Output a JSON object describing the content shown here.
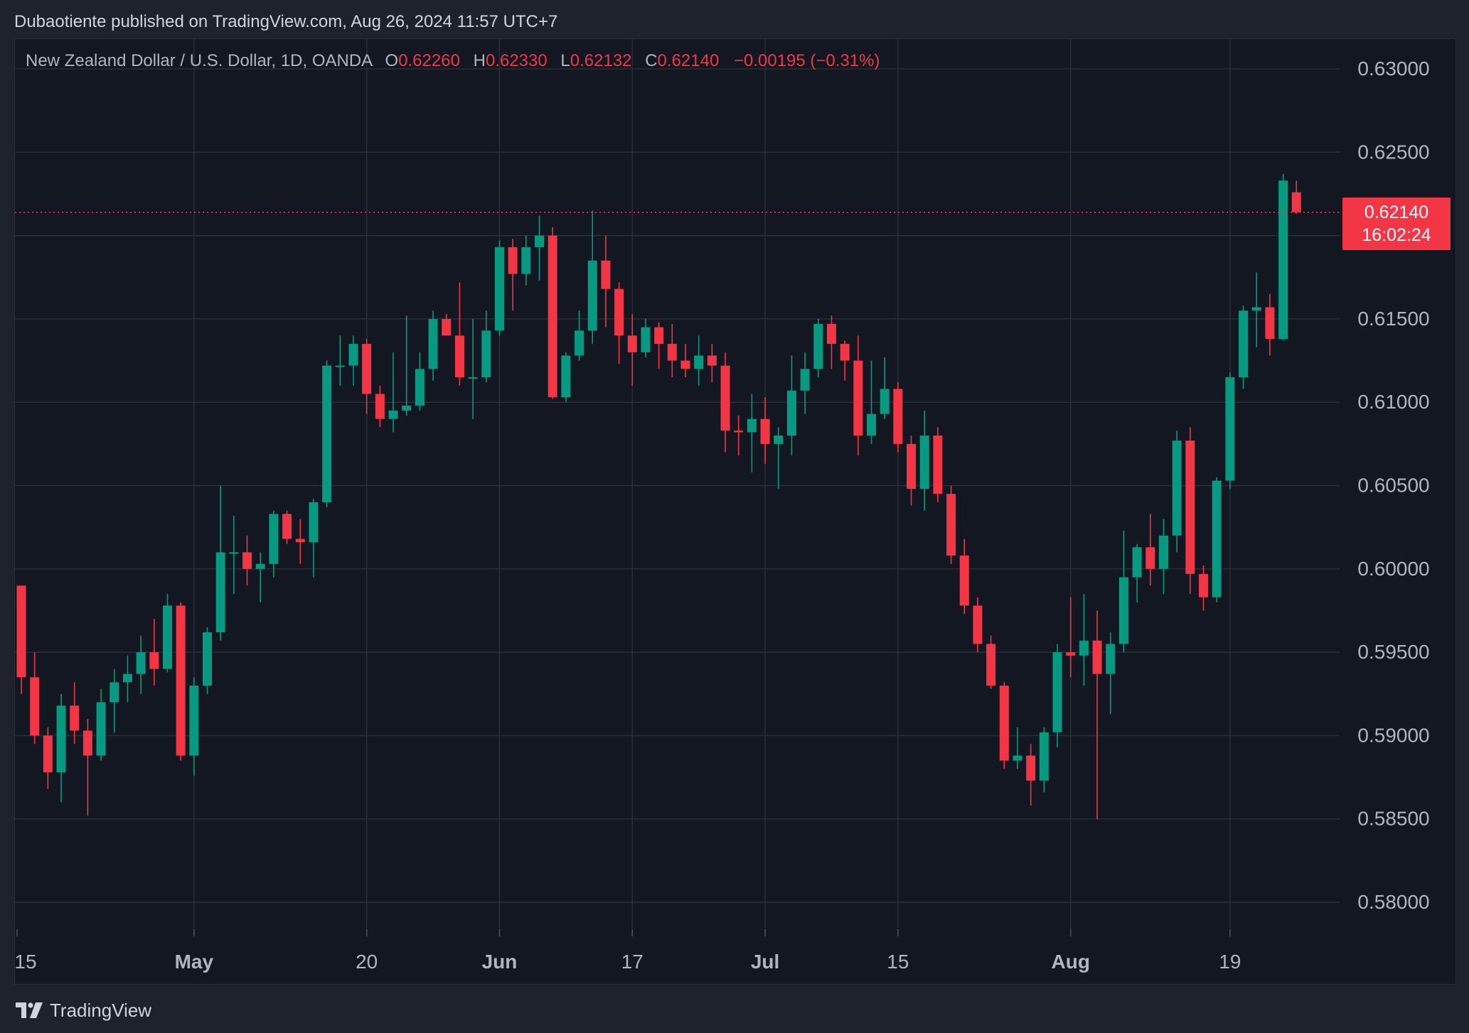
{
  "header": {
    "publisher_text": "Dubaotiente published on TradingView.com, Aug 26, 2024 11:57 UTC+7"
  },
  "legend": {
    "symbol": "New Zealand Dollar / U.S. Dollar, 1D, OANDA",
    "open_label": "O",
    "open": "0.62260",
    "high_label": "H",
    "high": "0.62330",
    "low_label": "L",
    "low": "0.62132",
    "close_label": "C",
    "close": "0.62140",
    "change": "−0.00195 (−0.31%)"
  },
  "price_tag": {
    "price": "0.62140",
    "countdown": "16:02:24"
  },
  "footer": {
    "brand": "TradingView"
  },
  "colors": {
    "up": "#089981",
    "down": "#f23645",
    "grid": "#2a2e39",
    "text": "#b2b5be",
    "background": "#131722"
  },
  "chart_data": {
    "type": "candlestick",
    "title": "New Zealand Dollar / U.S. Dollar, 1D, OANDA",
    "current_price": 0.6214,
    "y_ticks": [
      0.58,
      0.585,
      0.59,
      0.595,
      0.6,
      0.605,
      0.61,
      0.615,
      0.62,
      0.625,
      0.63
    ],
    "y_tick_labels": [
      "0.58000",
      "0.58500",
      "0.59000",
      "0.59500",
      "0.60000",
      "0.60500",
      "0.61000",
      "0.61500",
      "0.62000",
      "0.62500",
      "0.63000"
    ],
    "x_ticks": [
      {
        "label": "15",
        "index": 0,
        "bold": false
      },
      {
        "label": "May",
        "index": 13,
        "bold": true
      },
      {
        "label": "20",
        "index": 26,
        "bold": false
      },
      {
        "label": "Jun",
        "index": 36,
        "bold": true
      },
      {
        "label": "17",
        "index": 46,
        "bold": false
      },
      {
        "label": "Jul",
        "index": 56,
        "bold": true
      },
      {
        "label": "15",
        "index": 66,
        "bold": false
      },
      {
        "label": "Aug",
        "index": 79,
        "bold": true
      },
      {
        "label": "19",
        "index": 91,
        "bold": false
      }
    ],
    "candles": [
      {
        "o": 0.599,
        "h": 0.599,
        "l": 0.5925,
        "c": 0.5935
      },
      {
        "o": 0.5935,
        "h": 0.595,
        "l": 0.5895,
        "c": 0.59
      },
      {
        "o": 0.59,
        "h": 0.5905,
        "l": 0.5868,
        "c": 0.5878
      },
      {
        "o": 0.5878,
        "h": 0.5925,
        "l": 0.586,
        "c": 0.5918
      },
      {
        "o": 0.5918,
        "h": 0.5932,
        "l": 0.5895,
        "c": 0.5903
      },
      {
        "o": 0.5903,
        "h": 0.591,
        "l": 0.5852,
        "c": 0.5888
      },
      {
        "o": 0.5888,
        "h": 0.5928,
        "l": 0.5885,
        "c": 0.592
      },
      {
        "o": 0.592,
        "h": 0.594,
        "l": 0.5902,
        "c": 0.5932
      },
      {
        "o": 0.5932,
        "h": 0.5948,
        "l": 0.592,
        "c": 0.5937
      },
      {
        "o": 0.5937,
        "h": 0.596,
        "l": 0.5925,
        "c": 0.595
      },
      {
        "o": 0.595,
        "h": 0.597,
        "l": 0.593,
        "c": 0.594
      },
      {
        "o": 0.594,
        "h": 0.5985,
        "l": 0.5938,
        "c": 0.5978
      },
      {
        "o": 0.5978,
        "h": 0.598,
        "l": 0.5885,
        "c": 0.5888
      },
      {
        "o": 0.5888,
        "h": 0.5935,
        "l": 0.5876,
        "c": 0.593
      },
      {
        "o": 0.593,
        "h": 0.5965,
        "l": 0.5925,
        "c": 0.5962
      },
      {
        "o": 0.5962,
        "h": 0.605,
        "l": 0.5957,
        "c": 0.601
      },
      {
        "o": 0.601,
        "h": 0.6032,
        "l": 0.5985,
        "c": 0.601
      },
      {
        "o": 0.601,
        "h": 0.602,
        "l": 0.599,
        "c": 0.6
      },
      {
        "o": 0.6,
        "h": 0.601,
        "l": 0.598,
        "c": 0.6003
      },
      {
        "o": 0.6003,
        "h": 0.6035,
        "l": 0.5995,
        "c": 0.6033
      },
      {
        "o": 0.6033,
        "h": 0.6035,
        "l": 0.6015,
        "c": 0.6018
      },
      {
        "o": 0.6018,
        "h": 0.603,
        "l": 0.6003,
        "c": 0.6016
      },
      {
        "o": 0.6016,
        "h": 0.6042,
        "l": 0.5995,
        "c": 0.604
      },
      {
        "o": 0.604,
        "h": 0.6125,
        "l": 0.6037,
        "c": 0.6122
      },
      {
        "o": 0.6122,
        "h": 0.614,
        "l": 0.611,
        "c": 0.6122
      },
      {
        "o": 0.6122,
        "h": 0.614,
        "l": 0.611,
        "c": 0.6135
      },
      {
        "o": 0.6135,
        "h": 0.6138,
        "l": 0.6093,
        "c": 0.6105
      },
      {
        "o": 0.6105,
        "h": 0.611,
        "l": 0.6085,
        "c": 0.609
      },
      {
        "o": 0.609,
        "h": 0.613,
        "l": 0.6082,
        "c": 0.6095
      },
      {
        "o": 0.6095,
        "h": 0.6152,
        "l": 0.6092,
        "c": 0.6098
      },
      {
        "o": 0.6098,
        "h": 0.613,
        "l": 0.6095,
        "c": 0.612
      },
      {
        "o": 0.612,
        "h": 0.6155,
        "l": 0.6113,
        "c": 0.615
      },
      {
        "o": 0.615,
        "h": 0.6153,
        "l": 0.614,
        "c": 0.614
      },
      {
        "o": 0.614,
        "h": 0.6172,
        "l": 0.611,
        "c": 0.6115
      },
      {
        "o": 0.6115,
        "h": 0.615,
        "l": 0.609,
        "c": 0.6115
      },
      {
        "o": 0.6115,
        "h": 0.6155,
        "l": 0.6112,
        "c": 0.6143
      },
      {
        "o": 0.6143,
        "h": 0.6197,
        "l": 0.614,
        "c": 0.6193
      },
      {
        "o": 0.6193,
        "h": 0.6198,
        "l": 0.6155,
        "c": 0.6177
      },
      {
        "o": 0.6177,
        "h": 0.62,
        "l": 0.617,
        "c": 0.6193
      },
      {
        "o": 0.6193,
        "h": 0.6212,
        "l": 0.6173,
        "c": 0.62
      },
      {
        "o": 0.62,
        "h": 0.6205,
        "l": 0.6102,
        "c": 0.6103
      },
      {
        "o": 0.6103,
        "h": 0.613,
        "l": 0.61,
        "c": 0.6128
      },
      {
        "o": 0.6128,
        "h": 0.6155,
        "l": 0.6125,
        "c": 0.6143
      },
      {
        "o": 0.6143,
        "h": 0.6215,
        "l": 0.6135,
        "c": 0.6185
      },
      {
        "o": 0.6185,
        "h": 0.62,
        "l": 0.6145,
        "c": 0.6168
      },
      {
        "o": 0.6168,
        "h": 0.6172,
        "l": 0.6123,
        "c": 0.614
      },
      {
        "o": 0.614,
        "h": 0.6153,
        "l": 0.611,
        "c": 0.613
      },
      {
        "o": 0.613,
        "h": 0.615,
        "l": 0.6127,
        "c": 0.6145
      },
      {
        "o": 0.6145,
        "h": 0.6148,
        "l": 0.612,
        "c": 0.6135
      },
      {
        "o": 0.6135,
        "h": 0.6147,
        "l": 0.6115,
        "c": 0.6125
      },
      {
        "o": 0.6125,
        "h": 0.6135,
        "l": 0.6115,
        "c": 0.612
      },
      {
        "o": 0.612,
        "h": 0.614,
        "l": 0.611,
        "c": 0.6128
      },
      {
        "o": 0.6128,
        "h": 0.6135,
        "l": 0.6112,
        "c": 0.6122
      },
      {
        "o": 0.6122,
        "h": 0.613,
        "l": 0.607,
        "c": 0.6083
      },
      {
        "o": 0.6083,
        "h": 0.6092,
        "l": 0.6068,
        "c": 0.6082
      },
      {
        "o": 0.6082,
        "h": 0.6105,
        "l": 0.6058,
        "c": 0.609
      },
      {
        "o": 0.609,
        "h": 0.6103,
        "l": 0.6063,
        "c": 0.6075
      },
      {
        "o": 0.6075,
        "h": 0.6085,
        "l": 0.6048,
        "c": 0.608
      },
      {
        "o": 0.608,
        "h": 0.6128,
        "l": 0.6068,
        "c": 0.6107
      },
      {
        "o": 0.6107,
        "h": 0.613,
        "l": 0.6093,
        "c": 0.612
      },
      {
        "o": 0.612,
        "h": 0.615,
        "l": 0.6115,
        "c": 0.6147
      },
      {
        "o": 0.6147,
        "h": 0.6152,
        "l": 0.612,
        "c": 0.6135
      },
      {
        "o": 0.6135,
        "h": 0.6137,
        "l": 0.6113,
        "c": 0.6125
      },
      {
        "o": 0.6125,
        "h": 0.614,
        "l": 0.6068,
        "c": 0.608
      },
      {
        "o": 0.608,
        "h": 0.6125,
        "l": 0.6075,
        "c": 0.6093
      },
      {
        "o": 0.6093,
        "h": 0.6127,
        "l": 0.609,
        "c": 0.6108
      },
      {
        "o": 0.6108,
        "h": 0.6112,
        "l": 0.607,
        "c": 0.6075
      },
      {
        "o": 0.6075,
        "h": 0.608,
        "l": 0.6038,
        "c": 0.6048
      },
      {
        "o": 0.6048,
        "h": 0.6095,
        "l": 0.6035,
        "c": 0.608
      },
      {
        "o": 0.608,
        "h": 0.6085,
        "l": 0.604,
        "c": 0.6045
      },
      {
        "o": 0.6045,
        "h": 0.605,
        "l": 0.6003,
        "c": 0.6008
      },
      {
        "o": 0.6008,
        "h": 0.6018,
        "l": 0.5973,
        "c": 0.5978
      },
      {
        "o": 0.5978,
        "h": 0.5983,
        "l": 0.595,
        "c": 0.5955
      },
      {
        "o": 0.5955,
        "h": 0.596,
        "l": 0.5928,
        "c": 0.593
      },
      {
        "o": 0.593,
        "h": 0.5932,
        "l": 0.588,
        "c": 0.5885
      },
      {
        "o": 0.5885,
        "h": 0.5905,
        "l": 0.588,
        "c": 0.5888
      },
      {
        "o": 0.5888,
        "h": 0.5895,
        "l": 0.5858,
        "c": 0.5873
      },
      {
        "o": 0.5873,
        "h": 0.5905,
        "l": 0.5866,
        "c": 0.5902
      },
      {
        "o": 0.5902,
        "h": 0.5955,
        "l": 0.5893,
        "c": 0.595
      },
      {
        "o": 0.595,
        "h": 0.5983,
        "l": 0.5935,
        "c": 0.5948
      },
      {
        "o": 0.5948,
        "h": 0.5985,
        "l": 0.593,
        "c": 0.5957
      },
      {
        "o": 0.5957,
        "h": 0.5975,
        "l": 0.585,
        "c": 0.5937
      },
      {
        "o": 0.5937,
        "h": 0.5962,
        "l": 0.5913,
        "c": 0.5955
      },
      {
        "o": 0.5955,
        "h": 0.6023,
        "l": 0.595,
        "c": 0.5995
      },
      {
        "o": 0.5995,
        "h": 0.6015,
        "l": 0.598,
        "c": 0.6013
      },
      {
        "o": 0.6013,
        "h": 0.6033,
        "l": 0.599,
        "c": 0.6
      },
      {
        "o": 0.6,
        "h": 0.603,
        "l": 0.5985,
        "c": 0.602
      },
      {
        "o": 0.602,
        "h": 0.6083,
        "l": 0.601,
        "c": 0.6077
      },
      {
        "o": 0.6077,
        "h": 0.6085,
        "l": 0.5985,
        "c": 0.5997
      },
      {
        "o": 0.5997,
        "h": 0.6002,
        "l": 0.5975,
        "c": 0.5983
      },
      {
        "o": 0.5983,
        "h": 0.6055,
        "l": 0.598,
        "c": 0.6053
      },
      {
        "o": 0.6053,
        "h": 0.6118,
        "l": 0.6048,
        "c": 0.6115
      },
      {
        "o": 0.6115,
        "h": 0.6158,
        "l": 0.6108,
        "c": 0.6155
      },
      {
        "o": 0.6155,
        "h": 0.6178,
        "l": 0.6133,
        "c": 0.6157
      },
      {
        "o": 0.6157,
        "h": 0.6165,
        "l": 0.6128,
        "c": 0.6138
      },
      {
        "o": 0.6138,
        "h": 0.6237,
        "l": 0.6137,
        "c": 0.6233
      },
      {
        "o": 0.6226,
        "h": 0.6233,
        "l": 0.6213,
        "c": 0.6214
      }
    ]
  }
}
